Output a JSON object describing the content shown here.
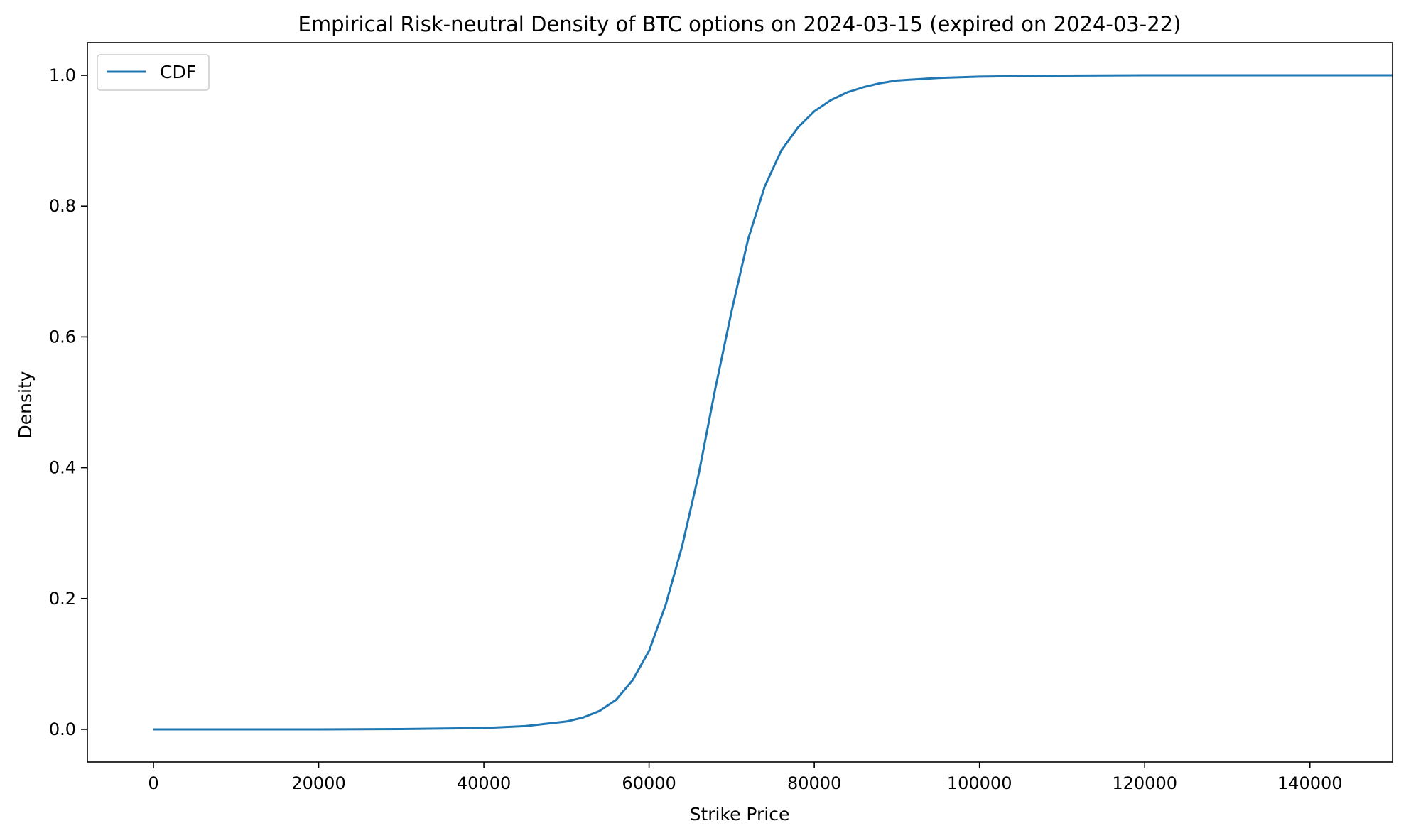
{
  "chart_data": {
    "type": "line",
    "title": "Empirical Risk-neutral Density of BTC options on 2024-03-15 (expired on 2024-03-22)",
    "xlabel": "Strike Price",
    "ylabel": "Density",
    "xlim": [
      -8000,
      150000
    ],
    "ylim": [
      -0.05,
      1.05
    ],
    "xticks": [
      0,
      20000,
      40000,
      60000,
      80000,
      100000,
      120000,
      140000
    ],
    "yticks": [
      0.0,
      0.2,
      0.4,
      0.6,
      0.8,
      1.0
    ],
    "xtick_labels": [
      "0",
      "20000",
      "40000",
      "60000",
      "80000",
      "100000",
      "120000",
      "140000"
    ],
    "ytick_labels": [
      "0.0",
      "0.2",
      "0.4",
      "0.6",
      "0.8",
      "1.0"
    ],
    "grid": false,
    "legend": {
      "position": "top-left",
      "entries": [
        "CDF"
      ]
    },
    "series": [
      {
        "name": "CDF",
        "color": "#1f77b4",
        "x": [
          0,
          20000,
          30000,
          40000,
          45000,
          50000,
          52000,
          54000,
          56000,
          58000,
          60000,
          62000,
          64000,
          66000,
          68000,
          70000,
          72000,
          74000,
          76000,
          78000,
          80000,
          82000,
          84000,
          86000,
          88000,
          90000,
          95000,
          100000,
          110000,
          120000,
          150000
        ],
        "y": [
          0.0,
          0.0,
          0.0005,
          0.002,
          0.005,
          0.012,
          0.018,
          0.028,
          0.045,
          0.075,
          0.12,
          0.19,
          0.28,
          0.39,
          0.52,
          0.64,
          0.75,
          0.83,
          0.885,
          0.92,
          0.945,
          0.962,
          0.974,
          0.982,
          0.988,
          0.992,
          0.996,
          0.998,
          0.9995,
          1.0,
          1.0
        ]
      }
    ]
  }
}
